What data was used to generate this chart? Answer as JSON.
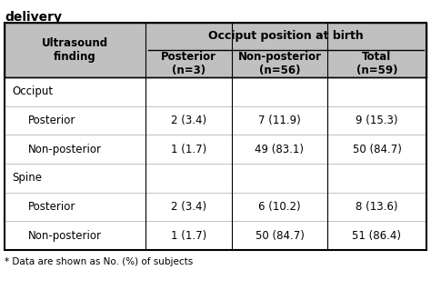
{
  "title": "delivery",
  "header_bg": "#c0c0c0",
  "col1_header": "Ultrasound\nfinding",
  "col_group_header": "Occiput position at birth",
  "col2_header": "Posterior\n(n=3)",
  "col3_header": "Non-posterior\n(n=56)",
  "col4_header": "Total\n(n=59)",
  "rows": [
    {
      "label": "Occiput",
      "indent": 0,
      "col2": "",
      "col3": "",
      "col4": "",
      "bold": false,
      "category": true
    },
    {
      "label": "Posterior",
      "indent": 1,
      "col2": "2 (3.4)",
      "col3": "7 (11.9)",
      "col4": "9 (15.3)",
      "bold": false,
      "category": false
    },
    {
      "label": "Non-posterior",
      "indent": 1,
      "col2": "1 (1.7)",
      "col3": "49 (83.1)",
      "col4": "50 (84.7)",
      "bold": false,
      "category": false
    },
    {
      "label": "Spine",
      "indent": 0,
      "col2": "",
      "col3": "",
      "col4": "",
      "bold": false,
      "category": true
    },
    {
      "label": "Posterior",
      "indent": 1,
      "col2": "2 (3.4)",
      "col3": "6 (10.2)",
      "col4": "8 (13.6)",
      "bold": false,
      "category": false
    },
    {
      "label": "Non-posterior",
      "indent": 1,
      "col2": "1 (1.7)",
      "col3": "50 (84.7)",
      "col4": "51 (86.4)",
      "bold": false,
      "category": false
    }
  ],
  "footnote": "* Data are shown as No. (%) of subjects",
  "header_text_color": "#000000",
  "body_text_color": "#000000",
  "table_bg": "#ffffff",
  "border_color": "#000000"
}
